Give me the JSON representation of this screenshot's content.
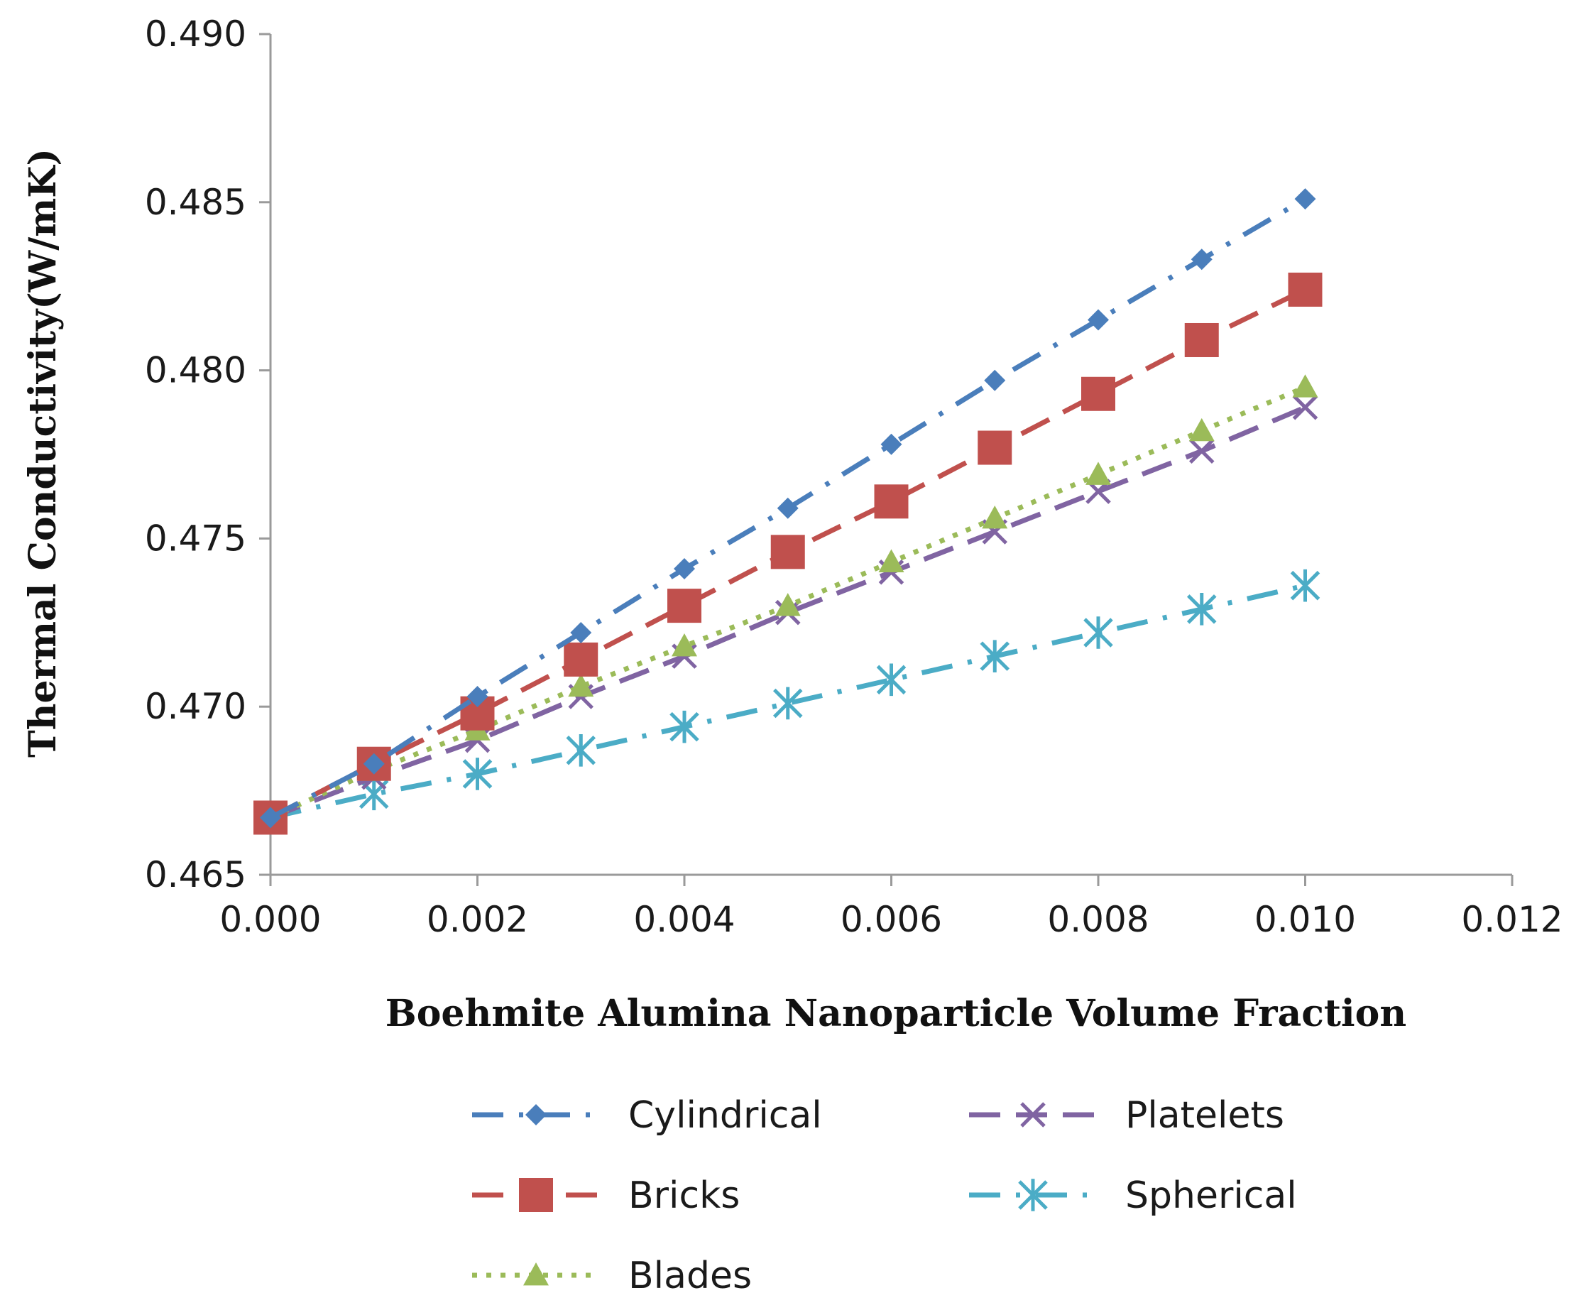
{
  "chart_data": {
    "type": "line",
    "title": "",
    "xlabel": "Boehmite Alumina Nanoparticle Volume Fraction",
    "ylabel": "Thermal Conductivity(W/mK)",
    "xlim": [
      0.0,
      0.012
    ],
    "ylim": [
      0.465,
      0.49
    ],
    "x_ticks": [
      "0.000",
      "0.002",
      "0.004",
      "0.006",
      "0.008",
      "0.010",
      "0.012"
    ],
    "y_ticks": [
      "0.465",
      "0.470",
      "0.475",
      "0.480",
      "0.485",
      "0.490"
    ],
    "grid": false,
    "legend_position": "bottom",
    "x": [
      0.0,
      0.001,
      0.002,
      0.003,
      0.004,
      0.005,
      0.006,
      0.007,
      0.008,
      0.009,
      0.01
    ],
    "series": [
      {
        "name": "Cylindrical",
        "color": "#4a7ebb",
        "marker": "diamond",
        "dash": "dash-dot",
        "values": [
          0.4667,
          0.4683,
          0.4703,
          0.4722,
          0.4741,
          0.4759,
          0.4778,
          0.4797,
          0.4815,
          0.4833,
          0.4851
        ]
      },
      {
        "name": "Bricks",
        "color": "#c0504d",
        "marker": "square",
        "dash": "dash",
        "values": [
          0.4667,
          0.4683,
          0.4698,
          0.4714,
          0.473,
          0.4746,
          0.4761,
          0.4777,
          0.4793,
          0.4809,
          0.4824
        ]
      },
      {
        "name": "Blades",
        "color": "#9bbb59",
        "marker": "triangle",
        "dash": "dot",
        "values": [
          0.4667,
          0.4681,
          0.4693,
          0.4706,
          0.4718,
          0.473,
          0.4743,
          0.4756,
          0.4769,
          0.4782,
          0.4795
        ]
      },
      {
        "name": "Platelets",
        "color": "#8064a2",
        "marker": "x",
        "dash": "dash",
        "values": [
          0.4667,
          0.4679,
          0.469,
          0.4703,
          0.4715,
          0.4728,
          0.474,
          0.4752,
          0.4764,
          0.4776,
          0.4789
        ]
      },
      {
        "name": "Spherical",
        "color": "#4bacc6",
        "marker": "star",
        "dash": "dash-dot",
        "values": [
          0.4667,
          0.4674,
          0.468,
          0.4687,
          0.4694,
          0.4701,
          0.4708,
          0.4715,
          0.4722,
          0.4729,
          0.4736
        ]
      }
    ]
  }
}
